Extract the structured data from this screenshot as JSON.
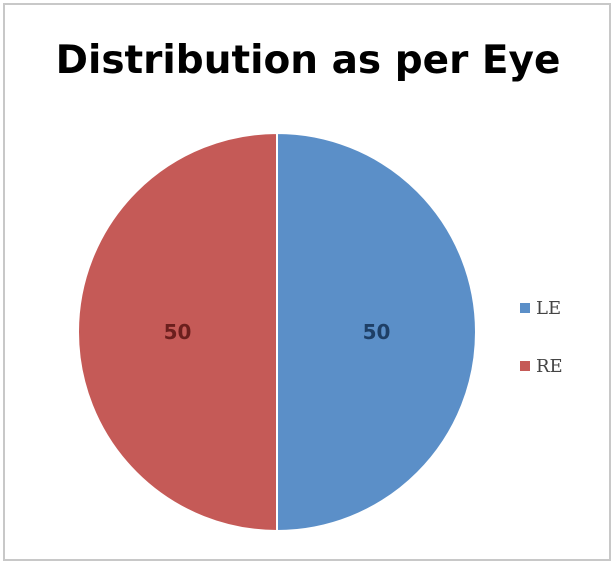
{
  "chart_data": {
    "type": "pie",
    "title": "Distribution as per Eye",
    "categories": [
      "LE",
      "RE"
    ],
    "values": [
      50,
      50
    ],
    "data_labels": [
      "50",
      "50"
    ],
    "colors": [
      "#5b8fc8",
      "#c55a57"
    ],
    "label_colors": [
      "#1e3f66",
      "#6b1f1d"
    ],
    "legend": {
      "position": "right",
      "items": [
        {
          "label": "LE",
          "color": "#5b8fc8"
        },
        {
          "label": "RE",
          "color": "#c55a57"
        }
      ]
    }
  }
}
